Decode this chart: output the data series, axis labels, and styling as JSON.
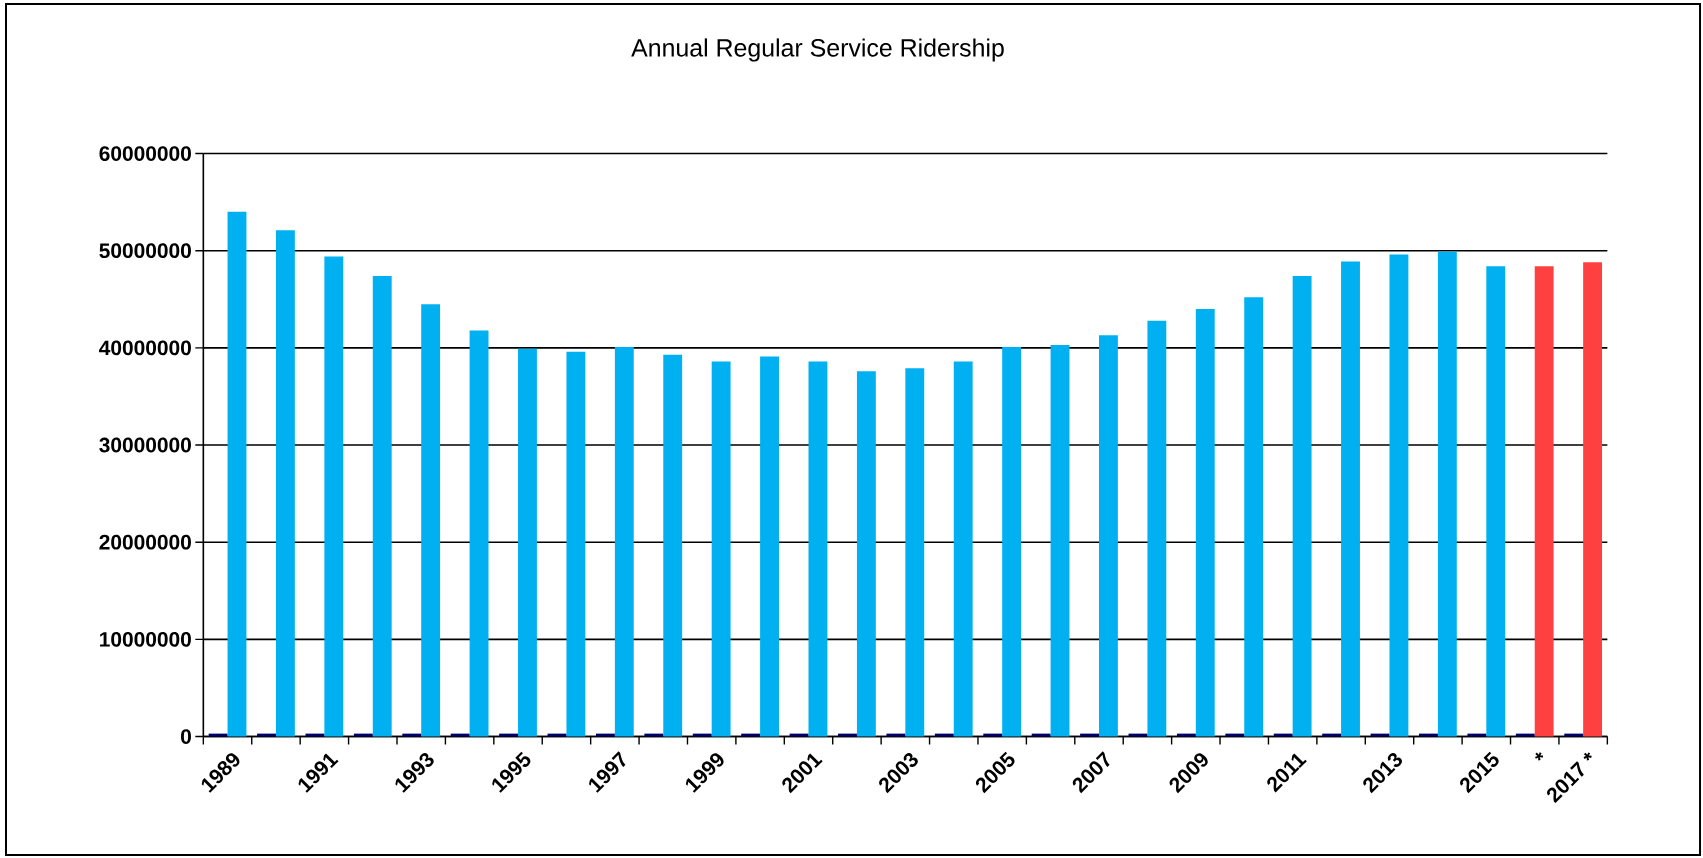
{
  "chart_data": {
    "type": "bar",
    "title": "Annual Regular Service Ridership",
    "categories": [
      "1989",
      null,
      "1991",
      null,
      "1993",
      null,
      "1995",
      null,
      "1997",
      null,
      "1999",
      null,
      "2001",
      null,
      "2003",
      null,
      "2005",
      null,
      "2007",
      null,
      "2009",
      null,
      "2011",
      null,
      "2013",
      null,
      "2015",
      "*",
      "2017 *"
    ],
    "series": [
      {
        "color": "#000066",
        "values": [
          300000,
          300000,
          300000,
          300000,
          300000,
          300000,
          300000,
          300000,
          300000,
          300000,
          300000,
          300000,
          300000,
          300000,
          300000,
          300000,
          300000,
          300000,
          300000,
          300000,
          300000,
          300000,
          300000,
          300000,
          300000,
          300000,
          300000,
          300000,
          300000
        ]
      },
      {
        "colors": [
          "#00b0f0",
          "#00b0f0",
          "#00b0f0",
          "#00b0f0",
          "#00b0f0",
          "#00b0f0",
          "#00b0f0",
          "#00b0f0",
          "#00b0f0",
          "#00b0f0",
          "#00b0f0",
          "#00b0f0",
          "#00b0f0",
          "#00b0f0",
          "#00b0f0",
          "#00b0f0",
          "#00b0f0",
          "#00b0f0",
          "#00b0f0",
          "#00b0f0",
          "#00b0f0",
          "#00b0f0",
          "#00b0f0",
          "#00b0f0",
          "#00b0f0",
          "#00b0f0",
          "#00b0f0",
          "#ff4040",
          "#ff4040"
        ],
        "values": [
          54000000,
          52100000,
          49400000,
          47400000,
          44500000,
          41800000,
          39900000,
          39600000,
          40100000,
          39300000,
          38600000,
          39100000,
          38600000,
          37600000,
          37900000,
          38600000,
          40100000,
          40300000,
          41300000,
          42800000,
          44000000,
          45200000,
          47400000,
          48900000,
          49600000,
          49900000,
          48400000,
          48400000,
          48800000
        ]
      }
    ],
    "ylim": [
      0,
      60000000
    ],
    "yticks": [
      0,
      10000000,
      20000000,
      30000000,
      40000000,
      50000000,
      60000000
    ],
    "grid": "y"
  }
}
